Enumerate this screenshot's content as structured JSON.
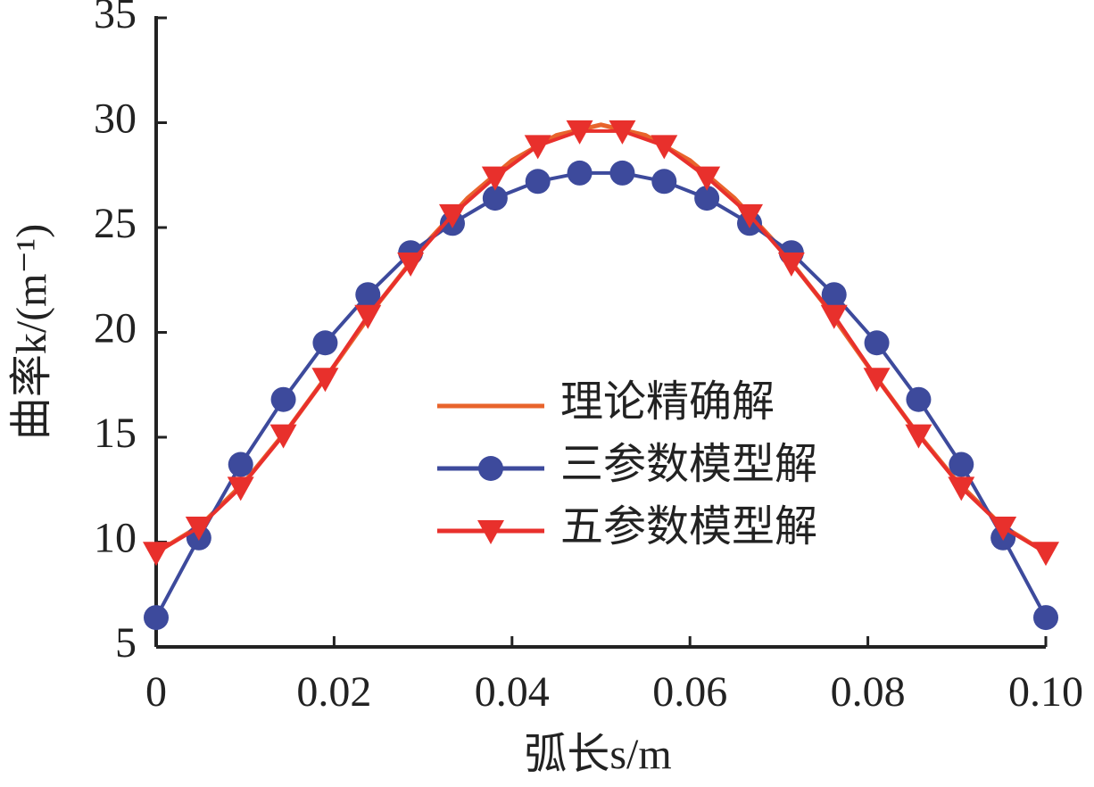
{
  "chart_data": {
    "type": "line",
    "x_label": "弧长s/m",
    "y_label": "曲率k/(m⁻¹)",
    "xlim": [
      0,
      0.1
    ],
    "ylim": [
      5,
      35
    ],
    "xticks": [
      0,
      0.02,
      0.04,
      0.06,
      0.08,
      {
        "value": 0.1,
        "label": "0.10"
      }
    ],
    "yticks": [
      5,
      10,
      15,
      20,
      25,
      30,
      35
    ],
    "legend": "lower center",
    "series": [
      {
        "name": "理论精确解",
        "color": "#e8642c",
        "marker": "none",
        "x": [
          0,
          0.005,
          0.01,
          0.015,
          0.02,
          0.025,
          0.03,
          0.035,
          0.04,
          0.045,
          0.05,
          0.055,
          0.06,
          0.065,
          0.07,
          0.075,
          0.08,
          0.085,
          0.09,
          0.095,
          0.1
        ],
        "values": [
          9.5,
          10.8,
          12.9,
          15.5,
          18.4,
          21.4,
          24.1,
          26.4,
          28.2,
          29.4,
          29.9,
          29.4,
          28.2,
          26.4,
          24.1,
          21.4,
          18.4,
          15.5,
          12.9,
          10.8,
          9.5
        ]
      },
      {
        "name": "三参数模型解",
        "color": "#3d4a9c",
        "marker": "circle",
        "x": [
          0,
          0.0048,
          0.0095,
          0.0143,
          0.019,
          0.0238,
          0.0286,
          0.0333,
          0.0381,
          0.0429,
          0.0476,
          0.0524,
          0.0571,
          0.0619,
          0.0667,
          0.0714,
          0.0762,
          0.081,
          0.0857,
          0.0905,
          0.0952,
          0.1
        ],
        "values": [
          6.4,
          10.2,
          13.7,
          16.8,
          19.5,
          21.8,
          23.8,
          25.2,
          26.4,
          27.2,
          27.6,
          27.6,
          27.2,
          26.4,
          25.2,
          23.8,
          21.8,
          19.5,
          16.8,
          13.7,
          10.2,
          6.4
        ]
      },
      {
        "name": "五参数模型解",
        "color": "#e8302c",
        "marker": "triangle-down",
        "x": [
          0,
          0.0048,
          0.0095,
          0.0143,
          0.019,
          0.0238,
          0.0286,
          0.0333,
          0.0381,
          0.0429,
          0.0476,
          0.0524,
          0.0571,
          0.0619,
          0.0667,
          0.0714,
          0.0762,
          0.081,
          0.0857,
          0.0905,
          0.0952,
          0.1
        ],
        "values": [
          9.5,
          10.7,
          12.6,
          15.1,
          17.8,
          20.8,
          23.3,
          25.6,
          27.4,
          28.9,
          29.6,
          29.6,
          28.9,
          27.4,
          25.6,
          23.3,
          20.8,
          17.8,
          15.1,
          12.6,
          10.7,
          9.5
        ]
      }
    ]
  }
}
